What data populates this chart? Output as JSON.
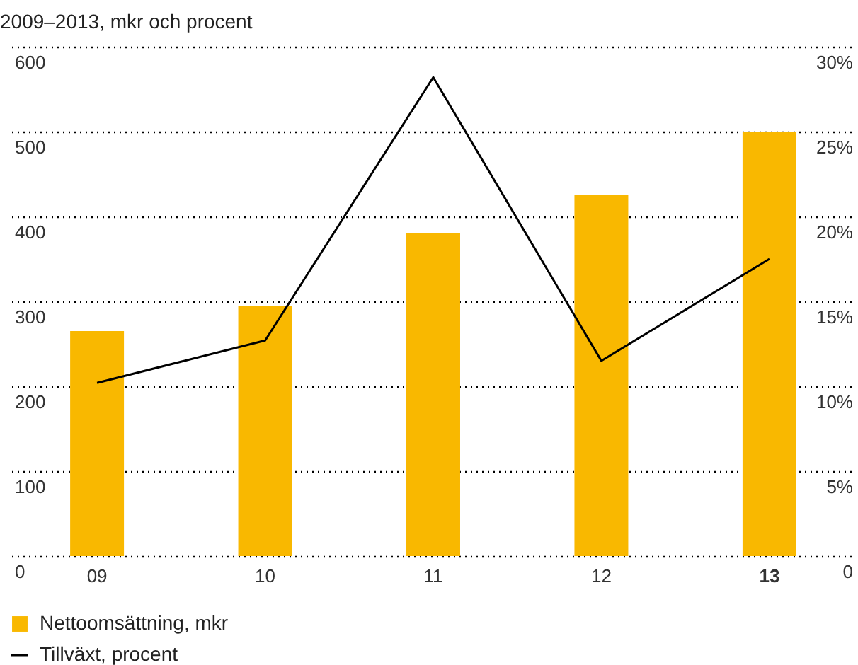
{
  "chart_data": {
    "type": "bar",
    "title": "2009–2013, mkr och procent",
    "categories": [
      "09",
      "10",
      "11",
      "12",
      "13"
    ],
    "series": [
      {
        "name": "Nettoomsättning, mkr",
        "color": "#f9b800",
        "values": [
          265,
          295,
          380,
          425,
          500
        ]
      },
      {
        "name": "Tillväxt, procent",
        "type": "line",
        "axis": "y2",
        "color": "#000000",
        "values": [
          10.2,
          12.7,
          28.2,
          11.5,
          17.5
        ]
      }
    ],
    "ylim": [
      0,
      600
    ],
    "yticks": [
      0,
      100,
      200,
      300,
      400,
      500,
      600
    ],
    "y2lim": [
      0,
      30
    ],
    "y2ticks": [
      {
        "value": 0,
        "label": "0"
      },
      {
        "value": 5,
        "label": "5%"
      },
      {
        "value": 10,
        "label": "10%"
      },
      {
        "value": 15,
        "label": "15%"
      },
      {
        "value": 20,
        "label": "20%"
      },
      {
        "value": 25,
        "label": "25%"
      },
      {
        "value": 30,
        "label": "30%"
      }
    ],
    "grid": "y",
    "legend": "bottom",
    "marker": "none",
    "line_style": "solid"
  }
}
